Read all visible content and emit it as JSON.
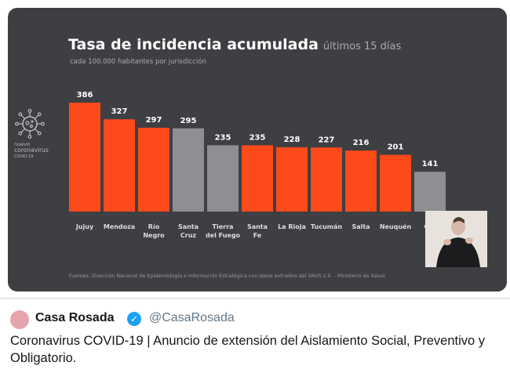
{
  "chart_data": {
    "type": "bar",
    "title": "Tasa de incidencia acumulada",
    "title_suffix": "últimos 15 días",
    "subtitle": "cada 100.000 habitantes por jurisdicción",
    "categories": [
      "Jujuy",
      "Mendoza",
      "Río Negro",
      "Santa Cruz",
      "Tierra del Fuego",
      "Santa Fe",
      "La Rioja",
      "Tucumán",
      "Salta",
      "Neuquén",
      "Córdoba"
    ],
    "category_lines": [
      [
        "Jujuy"
      ],
      [
        "Mendoza"
      ],
      [
        "Río",
        "Negro"
      ],
      [
        "Santa",
        "Cruz"
      ],
      [
        "Tierra",
        "del Fuego"
      ],
      [
        "Santa",
        "Fe"
      ],
      [
        "La Rioja"
      ],
      [
        "Tucumán"
      ],
      [
        "Salta"
      ],
      [
        "Neuquén"
      ],
      [
        "Cór"
      ]
    ],
    "values": [
      386,
      327,
      297,
      295,
      235,
      235,
      228,
      227,
      216,
      201,
      141
    ],
    "highlight": [
      true,
      true,
      true,
      false,
      false,
      true,
      true,
      true,
      true,
      true,
      false
    ],
    "colors": {
      "highlight": "#fc4a1a",
      "other": "#8e8e93",
      "background": "#3e3f43"
    },
    "ylim": [
      0,
      400
    ],
    "source": "Fuentes: Dirección Nacional de Epidemiología e Información Estratégica con datos extraídos del SNVS 2.0. - Ministerio de Salud.",
    "logo": [
      "nuevo",
      "coronavirus",
      "COVID-19"
    ]
  },
  "tweet": {
    "name": "Casa Rosada",
    "handle": "@CasaRosada",
    "text": "Coronavirus COVID-19 | Anuncio de extensión del Aislamiento Social, Preventivo y Obligatorio."
  }
}
